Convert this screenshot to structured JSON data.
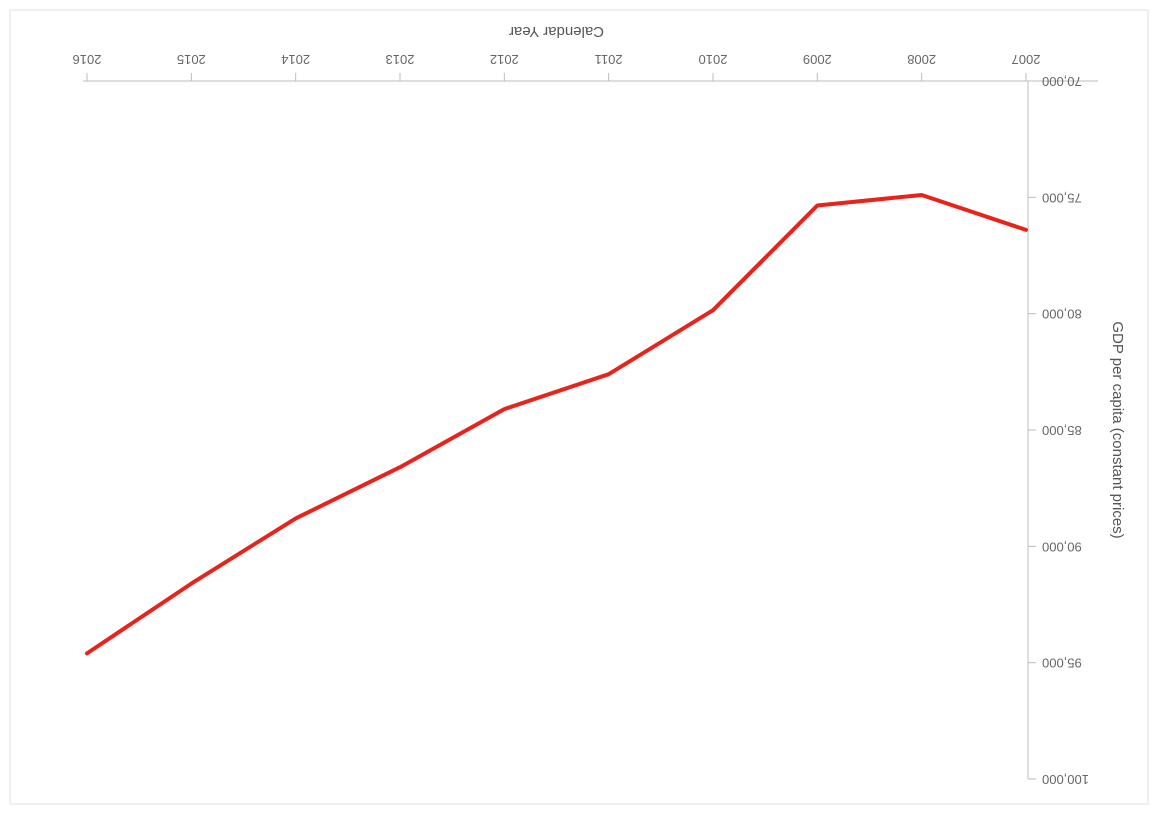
{
  "chart_data": {
    "type": "line",
    "x": [
      2007,
      2008,
      2009,
      2010,
      2011,
      2012,
      2013,
      2014,
      2015,
      2016
    ],
    "series": [
      {
        "values": [
          76400,
          74900,
          75350,
          79850,
          82600,
          84100,
          86600,
          88800,
          91600,
          94600
        ]
      }
    ],
    "xlabel": "Calendar Year",
    "ylabel": "GDP per capita (constant prices)",
    "xlim": [
      2007,
      2016
    ],
    "ylim": [
      70000,
      100000
    ],
    "y_ticks": [
      "70,000",
      "75,000",
      "80,000",
      "85,000",
      "90,000",
      "95,000",
      "100,000"
    ],
    "x_ticks": [
      "2007",
      "2008",
      "2009",
      "2010",
      "2011",
      "2012",
      "2013",
      "2014",
      "2015",
      "2016"
    ],
    "orientation": "rotated 180 degrees",
    "grid": false,
    "line_color": "#e8231c"
  }
}
